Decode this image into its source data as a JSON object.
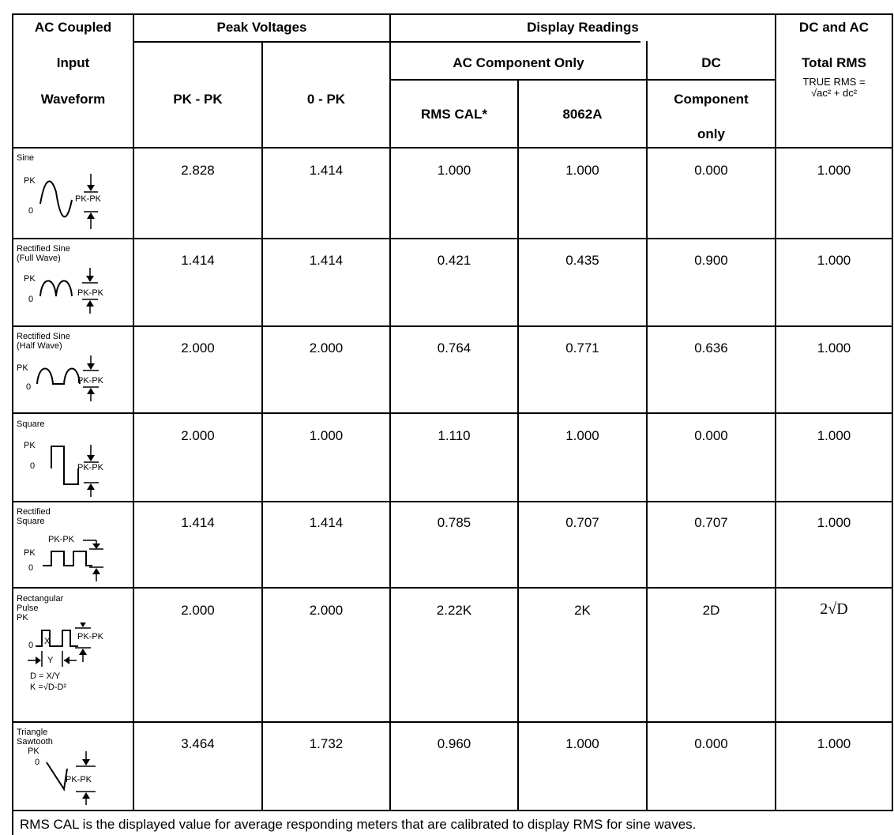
{
  "header": {
    "col1_line1": "AC Coupled",
    "col1_line2": "Input",
    "col1_line3": "Waveform",
    "peak": "Peak Voltages",
    "pkpk": "PK - PK",
    "zeropk": "0 - PK",
    "display": "Display Readings",
    "ac_only": "AC Component Only",
    "rmscal": "RMS CAL*",
    "m8062a": "8062A",
    "dc_line1": "DC",
    "dc_line2": "Component",
    "dc_line3": "only",
    "total_line1": "DC and AC",
    "total_line2": "Total RMS",
    "true_rms": "TRUE RMS =",
    "formula": "√ac² + dc²"
  },
  "waveform_text": {
    "pk": "PK",
    "zero": "0",
    "pkpk": "PK-PK",
    "y": "Y",
    "x": "X",
    "d_def": "D = X/Y",
    "k_def": "K =√D-D²"
  },
  "rows": [
    {
      "name": "Sine",
      "name2": "",
      "name3": "",
      "pkpk": "2.828",
      "zeropk": "1.414",
      "rmscal": "1.000",
      "m8062a": "1.000",
      "dc": "0.000",
      "total": "1.000"
    },
    {
      "name": "Rectified Sine",
      "name2": "(Full Wave)",
      "name3": "",
      "pkpk": "1.414",
      "zeropk": "1.414",
      "rmscal": "0.421",
      "m8062a": "0.435",
      "dc": "0.900",
      "total": "1.000"
    },
    {
      "name": "Rectified Sine",
      "name2": "(Half Wave)",
      "name3": "",
      "pkpk": "2.000",
      "zeropk": "2.000",
      "rmscal": "0.764",
      "m8062a": "0.771",
      "dc": "0.636",
      "total": "1.000"
    },
    {
      "name": "Square",
      "name2": "",
      "name3": "",
      "pkpk": "2.000",
      "zeropk": "1.000",
      "rmscal": "1.110",
      "m8062a": "1.000",
      "dc": "0.000",
      "total": "1.000"
    },
    {
      "name": "Rectified",
      "name2": "Square",
      "name3": "",
      "pkpk": "1.414",
      "zeropk": "1.414",
      "rmscal": "0.785",
      "m8062a": "0.707",
      "dc": "0.707",
      "total": "1.000"
    },
    {
      "name": "Rectangular",
      "name2": "Pulse",
      "name3": "PK",
      "pkpk": "2.000",
      "zeropk": "2.000",
      "rmscal": "2.22K",
      "m8062a": "2K",
      "dc": "2D",
      "total": "2√D"
    },
    {
      "name": "Triangle",
      "name2": "Sawtooth",
      "name3": "",
      "pkpk": "3.464",
      "zeropk": "1.732",
      "rmscal": "0.960",
      "m8062a": "1.000",
      "dc": "0.000",
      "total": "1.000"
    }
  ],
  "footnote": "RMS CAL is the displayed value for average responding meters that are calibrated to display RMS for sine waves."
}
